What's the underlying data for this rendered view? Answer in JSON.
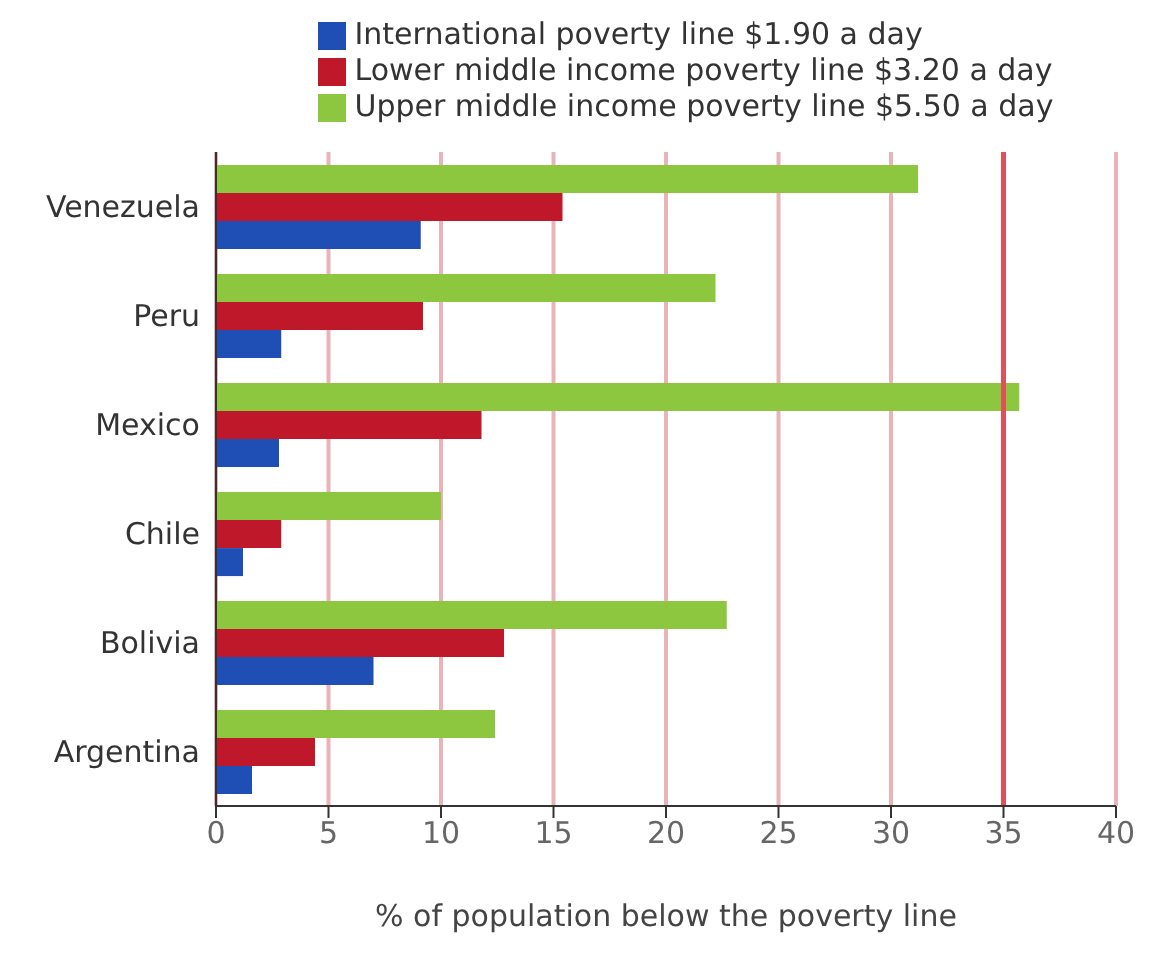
{
  "chart_data": {
    "type": "bar",
    "orientation": "horizontal",
    "xlabel": "% of population below the poverty line",
    "categories": [
      "Venezuela",
      "Peru",
      "Mexico",
      "Chile",
      "Bolivia",
      "Argentina"
    ],
    "series": [
      {
        "name": "Upper middle income poverty line $5.50 a day",
        "color": "#8dc63f",
        "values": [
          31.2,
          22.2,
          35.7,
          10.0,
          22.7,
          12.4
        ]
      },
      {
        "name": "Lower middle income poverty line $3.20 a day",
        "color": "#c0182b",
        "values": [
          15.4,
          9.2,
          11.8,
          2.9,
          12.8,
          4.4
        ]
      },
      {
        "name": "International poverty line $1.90 a day",
        "color": "#1f4fb4",
        "values": [
          9.1,
          2.9,
          2.8,
          1.2,
          7.0,
          1.6
        ]
      }
    ],
    "xlim": [
      0,
      40
    ],
    "xticks": [
      0,
      5,
      10,
      15,
      20,
      25,
      30,
      35,
      40
    ],
    "grid": "x",
    "legend": "top",
    "ref_lines": [
      {
        "axis": "x",
        "value": 35,
        "color": "#e0505a"
      }
    ]
  }
}
